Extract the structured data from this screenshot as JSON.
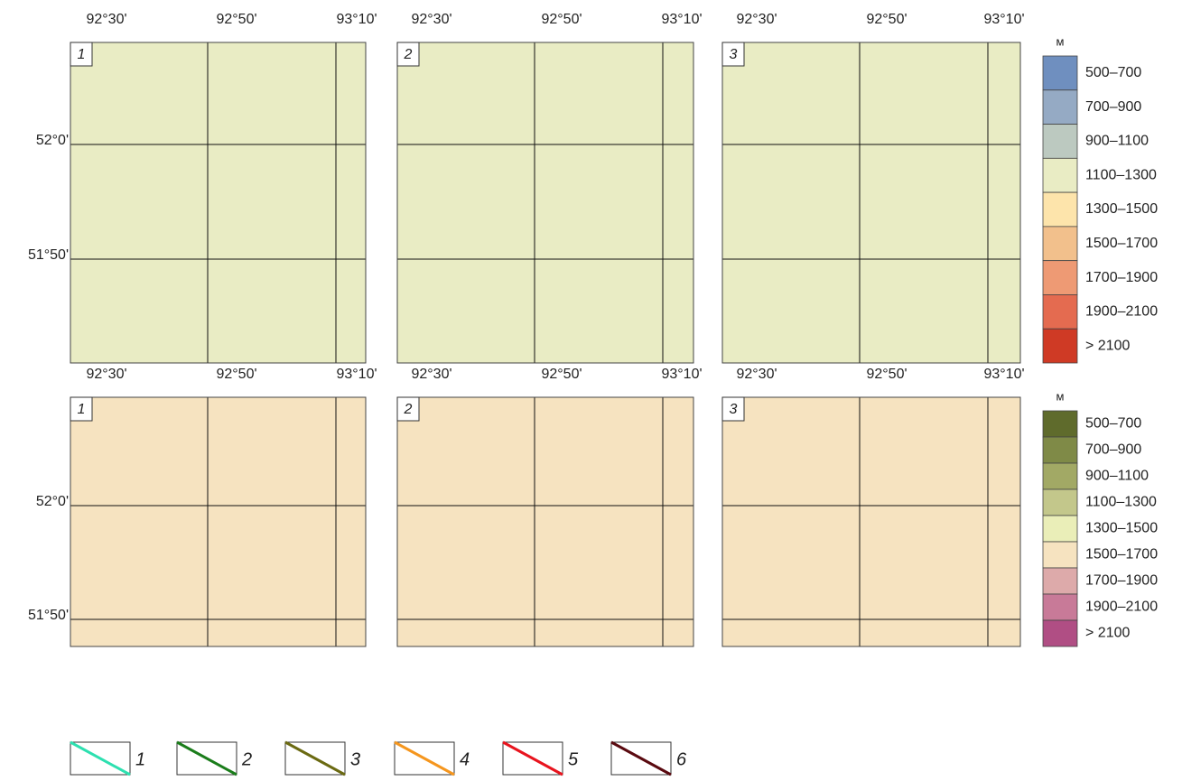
{
  "rows": [
    {
      "lon_labels": [
        "92°30'",
        "92°50'",
        "93°10'"
      ],
      "lat_labels": [
        "52°0'",
        "51°50'"
      ],
      "panels": [
        "1",
        "2",
        "3"
      ],
      "legend": {
        "unit": "м",
        "classes": [
          "500–700",
          "700–900",
          "900–1100",
          "1100–1300",
          "1300–1500",
          "1500–1700",
          "1700–1900",
          "1900–2100",
          "> 2100"
        ],
        "colors": [
          "#6f8fbf",
          "#95aac4",
          "#bcc9c0",
          "#e9ecc4",
          "#fde4ab",
          "#f2c08c",
          "#ee9a74",
          "#e46b50",
          "#cf3a25"
        ]
      }
    },
    {
      "lon_labels": [
        "92°30'",
        "92°50'",
        "93°10'"
      ],
      "lat_labels": [
        "52°0'",
        "51°50'"
      ],
      "panels": [
        "1",
        "2",
        "3"
      ],
      "legend": {
        "unit": "м",
        "classes": [
          "500–700",
          "700–900",
          "900–1100",
          "1100–1300",
          "1300–1500",
          "1500–1700",
          "1700–1900",
          "1900–2100",
          "> 2100"
        ],
        "colors": [
          "#5f6b2c",
          "#7f8a47",
          "#a2a965",
          "#c3c78b",
          "#eaeeb8",
          "#f6e3c0",
          "#ddaaaa",
          "#c87a98",
          "#b04e84"
        ]
      }
    }
  ],
  "line_legend": {
    "labels": [
      "1",
      "2",
      "3",
      "4",
      "5",
      "6"
    ],
    "colors": [
      "#2de0b0",
      "#1b7d1b",
      "#6b6a12",
      "#f5961e",
      "#e8141e",
      "#5a0a10"
    ]
  }
}
